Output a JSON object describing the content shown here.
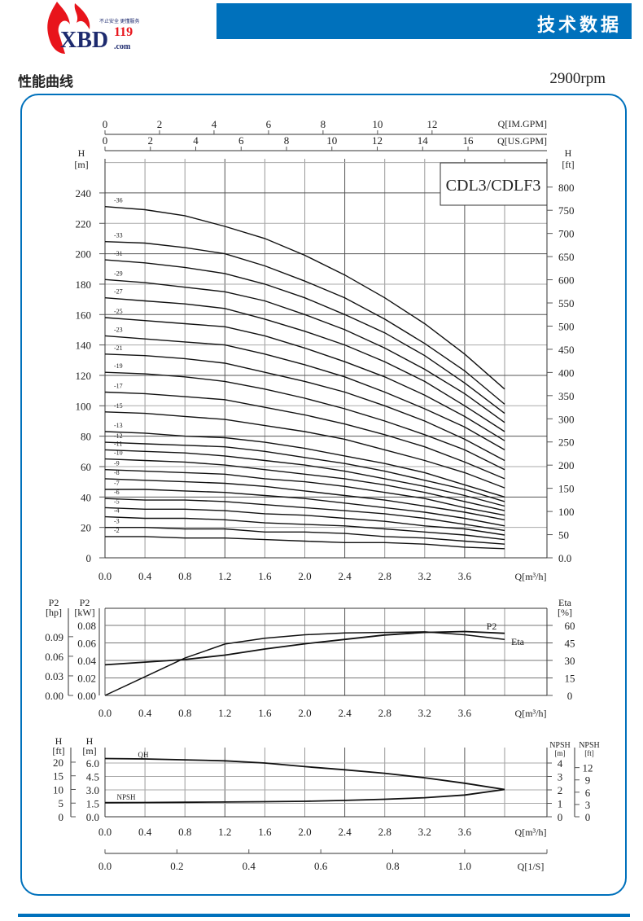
{
  "header": {
    "brand": "XBD119.com",
    "slogan": "不止安全 更懂服务",
    "banner_title": "技术数据"
  },
  "section_title": "性能曲线",
  "speed": "2900rpm",
  "colors": {
    "accent": "#0071bc",
    "logo_red": "#e8141b",
    "logo_navy": "#1d2a6e"
  },
  "chart_data": [
    {
      "type": "line",
      "title": "CDL3/CDLF3",
      "xlabel": "Q[m³/h]",
      "ylabel_left": "H [m]",
      "ylabel_right": "H [ft]",
      "top_axis_1": {
        "label": "Q[IM.GPM]",
        "ticks": [
          "0",
          "2",
          "4",
          "6",
          "8",
          "10",
          "12"
        ]
      },
      "top_axis_2": {
        "label": "Q[US.GPM]",
        "ticks": [
          "0",
          "2",
          "4",
          "6",
          "8",
          "10",
          "12",
          "14",
          "16"
        ]
      },
      "xticks": [
        "0.0",
        "0.4",
        "0.8",
        "1.2",
        "1.6",
        "2.0",
        "2.4",
        "2.8",
        "3.2",
        "3.6"
      ],
      "yticks_left": [
        "0",
        "20",
        "40",
        "60",
        "80",
        "100",
        "120",
        "140",
        "160",
        "180",
        "200",
        "220",
        "240"
      ],
      "yticks_right": [
        "0.0",
        "50",
        "100",
        "150",
        "200",
        "250",
        "300",
        "350",
        "400",
        "450",
        "500",
        "550",
        "600",
        "650",
        "700",
        "750",
        "800"
      ],
      "xlim": [
        0,
        4.4
      ],
      "ylim": [
        0,
        260
      ],
      "grid": true,
      "x": [
        0,
        0.4,
        0.8,
        1.2,
        1.6,
        2.0,
        2.4,
        2.8,
        3.2,
        3.6,
        4.0
      ],
      "series": [
        {
          "name": "-36",
          "values": [
            231,
            229,
            225,
            218,
            210,
            199,
            186,
            171,
            154,
            134,
            111
          ]
        },
        {
          "name": "-33",
          "values": [
            208,
            207,
            204,
            200,
            192,
            182,
            171,
            157,
            141,
            123,
            101
          ]
        },
        {
          "name": "-31",
          "values": [
            196,
            194,
            191,
            187,
            180,
            171,
            160,
            148,
            133,
            115,
            95
          ]
        },
        {
          "name": "-29",
          "values": [
            183,
            181,
            178,
            175,
            169,
            160,
            150,
            138,
            124,
            108,
            89
          ]
        },
        {
          "name": "-27",
          "values": [
            171,
            169,
            167,
            164,
            157,
            149,
            140,
            129,
            116,
            100,
            83
          ]
        },
        {
          "name": "-25",
          "values": [
            158,
            156,
            154,
            152,
            146,
            138,
            129,
            119,
            107,
            93,
            77
          ]
        },
        {
          "name": "-23",
          "values": [
            146,
            144,
            142,
            140,
            134,
            127,
            119,
            109,
            98,
            86,
            71
          ]
        },
        {
          "name": "-21",
          "values": [
            134,
            133,
            131,
            128,
            122,
            116,
            109,
            100,
            90,
            78,
            64
          ]
        },
        {
          "name": "-19",
          "values": [
            122,
            121,
            119,
            116,
            111,
            105,
            98,
            90,
            81,
            71,
            58
          ]
        },
        {
          "name": "-17",
          "values": [
            109,
            108,
            106,
            104,
            99,
            94,
            88,
            81,
            73,
            63,
            52
          ]
        },
        {
          "name": "-15",
          "values": [
            96,
            95,
            93,
            91,
            87,
            83,
            78,
            71,
            64,
            56,
            46
          ]
        },
        {
          "name": "-13",
          "values": [
            83,
            82,
            80,
            79,
            76,
            72,
            67,
            62,
            56,
            48,
            40
          ]
        },
        {
          "name": "-12",
          "values": [
            76,
            75,
            74,
            73,
            70,
            66,
            62,
            57,
            51,
            45,
            37
          ]
        },
        {
          "name": "-11",
          "values": [
            71,
            70,
            69,
            67,
            64,
            61,
            57,
            52,
            47,
            41,
            34
          ]
        },
        {
          "name": "-10",
          "values": [
            65,
            64,
            63,
            61,
            58,
            55,
            52,
            48,
            43,
            37,
            31
          ]
        },
        {
          "name": "-9",
          "values": [
            58,
            57,
            56,
            55,
            52,
            50,
            47,
            43,
            39,
            33,
            28
          ]
        },
        {
          "name": "-8",
          "values": [
            52,
            51,
            50,
            49,
            47,
            44,
            41,
            38,
            34,
            30,
            25
          ]
        },
        {
          "name": "-7",
          "values": [
            45,
            45,
            44,
            43,
            41,
            39,
            36,
            33,
            30,
            26,
            21
          ]
        },
        {
          "name": "-6",
          "values": [
            39,
            38,
            38,
            37,
            35,
            33,
            31,
            29,
            26,
            22,
            18
          ]
        },
        {
          "name": "-5",
          "values": [
            33,
            32,
            32,
            31,
            29,
            28,
            26,
            24,
            21,
            19,
            15
          ]
        },
        {
          "name": "-4",
          "values": [
            27,
            26,
            26,
            25,
            23,
            22,
            21,
            19,
            17,
            15,
            12
          ]
        },
        {
          "name": "-3",
          "values": [
            20,
            20,
            19,
            19,
            17,
            17,
            16,
            14,
            13,
            11,
            9
          ]
        },
        {
          "name": "-2",
          "values": [
            14,
            14,
            13,
            13,
            12,
            11,
            10,
            10,
            9,
            7,
            6
          ]
        }
      ]
    },
    {
      "type": "line",
      "xlabel": "Q[m³/h]",
      "ylabel_left_1": "P2 [hp]",
      "ylabel_left_2": "P2 [kW]",
      "ylabel_right": "Eta [%]",
      "yticks_hp": [
        "0.00",
        "0.03",
        "0.06",
        "0.09"
      ],
      "yticks_kw": [
        "0.00",
        "0.02",
        "0.04",
        "0.06",
        "0.08"
      ],
      "yticks_eta": [
        "0",
        "15",
        "30",
        "45",
        "60"
      ],
      "xticks": [
        "0.0",
        "0.4",
        "0.8",
        "1.2",
        "1.6",
        "2.0",
        "2.4",
        "2.8",
        "3.2",
        "3.6"
      ],
      "grid": true,
      "x": [
        0,
        0.4,
        0.8,
        1.2,
        1.6,
        2.0,
        2.4,
        2.8,
        3.2,
        3.6,
        4.0
      ],
      "series": [
        {
          "name": "P2",
          "unit": "kW",
          "values": [
            0.035,
            0.038,
            0.041,
            0.046,
            0.053,
            0.059,
            0.064,
            0.069,
            0.072,
            0.073,
            0.071
          ]
        },
        {
          "name": "Eta",
          "unit": "%",
          "values": [
            0,
            16,
            32,
            44,
            49,
            52,
            53.5,
            54,
            54.5,
            52,
            48
          ]
        }
      ]
    },
    {
      "type": "line",
      "xlabel": "Q[m³/h]",
      "xlabel_2": "Q[1/S]",
      "ylabel_left_1": "H [ft]",
      "ylabel_left_2": "H [m]",
      "ylabel_right_1": "NPSH [m]",
      "ylabel_right_2": "NPSH [ft]",
      "yticks_ft": [
        "0",
        "5",
        "10",
        "15",
        "20"
      ],
      "yticks_m": [
        "0.0",
        "1.5",
        "3.0",
        "4.5",
        "6.0"
      ],
      "yticks_npsh_m": [
        "0",
        "1",
        "2",
        "3",
        "4"
      ],
      "yticks_npsh_ft": [
        "0",
        "3",
        "6",
        "9",
        "12"
      ],
      "xticks": [
        "0.0",
        "0.4",
        "0.8",
        "1.2",
        "1.6",
        "2.0",
        "2.4",
        "2.8",
        "3.2",
        "3.6"
      ],
      "xticks_2": [
        "0.0",
        "0.2",
        "0.4",
        "0.6",
        "0.8",
        "1.0"
      ],
      "grid": true,
      "x": [
        0,
        0.4,
        0.8,
        1.2,
        1.6,
        2.0,
        2.4,
        2.8,
        3.2,
        3.6,
        4.0
      ],
      "series": [
        {
          "name": "QH",
          "unit": "m",
          "values": [
            6.5,
            6.45,
            6.35,
            6.25,
            6.0,
            5.6,
            5.25,
            4.85,
            4.35,
            3.75,
            3.05
          ]
        },
        {
          "name": "NPSH",
          "unit": "m",
          "values": [
            1.05,
            1.06,
            1.08,
            1.1,
            1.12,
            1.15,
            1.22,
            1.3,
            1.42,
            1.62,
            2.03
          ]
        }
      ]
    }
  ]
}
